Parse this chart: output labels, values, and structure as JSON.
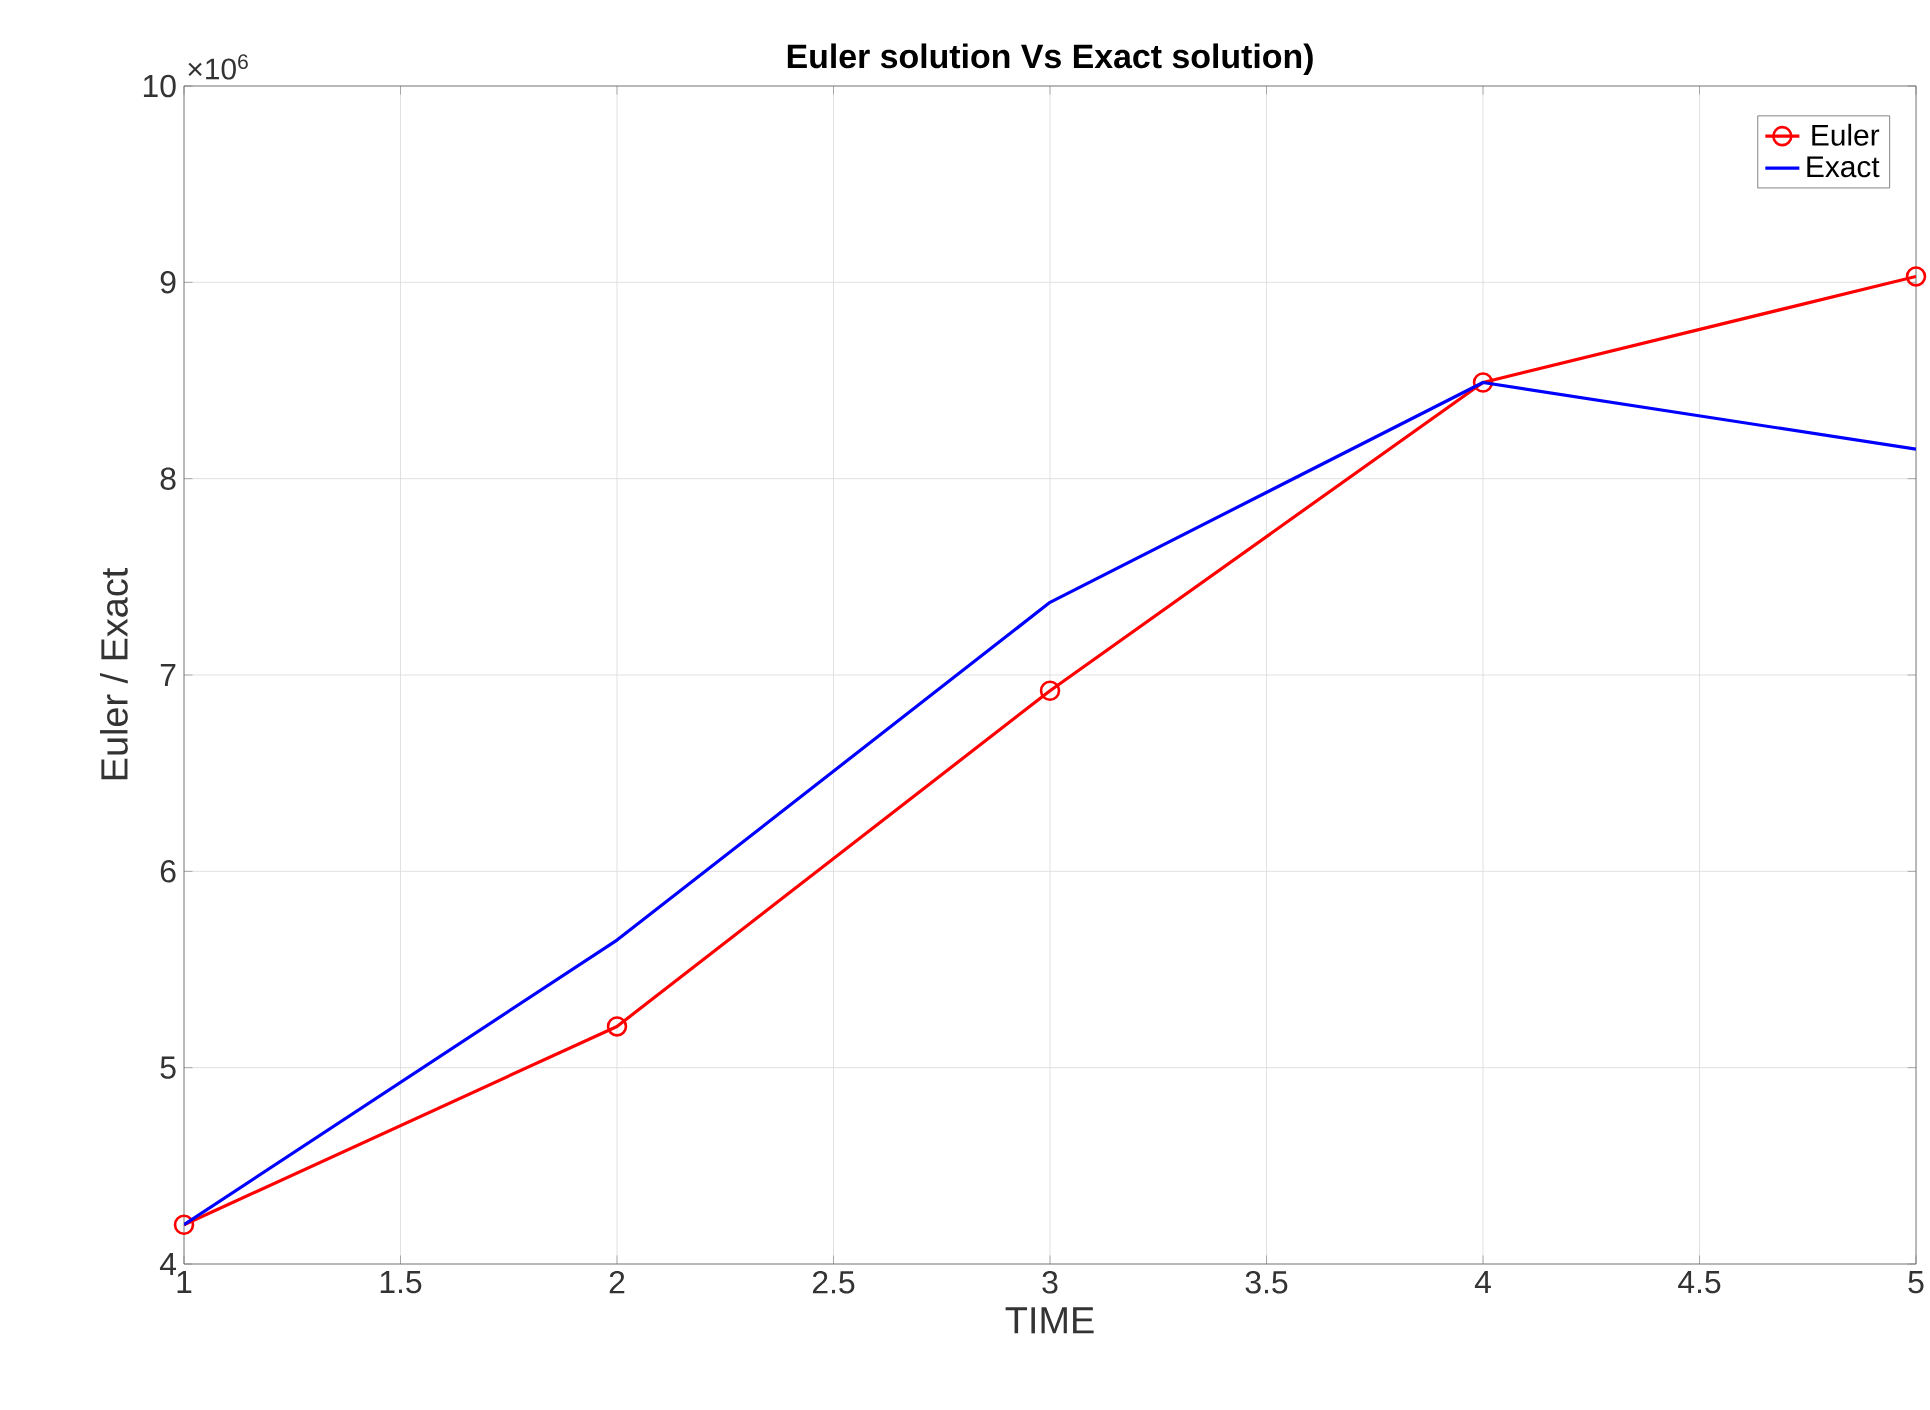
{
  "chart_data": {
    "type": "line",
    "title": "Euler solution Vs Exact solution)",
    "xlabel": "TIME",
    "ylabel": "Euler / Exact",
    "annotations": [
      "×10$^{6}$"
    ],
    "x": [
      1,
      2,
      3,
      4,
      5
    ],
    "series": [
      {
        "name": "Euler",
        "color": "#ff0000",
        "marker": "circle",
        "values": [
          4.2,
          5.21,
          6.92,
          8.49,
          9.03
        ]
      },
      {
        "name": "Exact",
        "color": "#0000ff",
        "marker": "none",
        "values": [
          4.2,
          5.65,
          7.37,
          8.49,
          8.15
        ]
      }
    ],
    "xlim": [
      1,
      5
    ],
    "xticks": [
      1,
      1.5,
      2,
      2.5,
      3,
      3.5,
      4,
      4.5,
      5
    ],
    "ylim": [
      4,
      10
    ],
    "yticks": [
      4,
      5,
      6,
      7,
      8,
      9,
      10
    ],
    "grid": true,
    "legend": "top right",
    "line_style": "solid"
  }
}
